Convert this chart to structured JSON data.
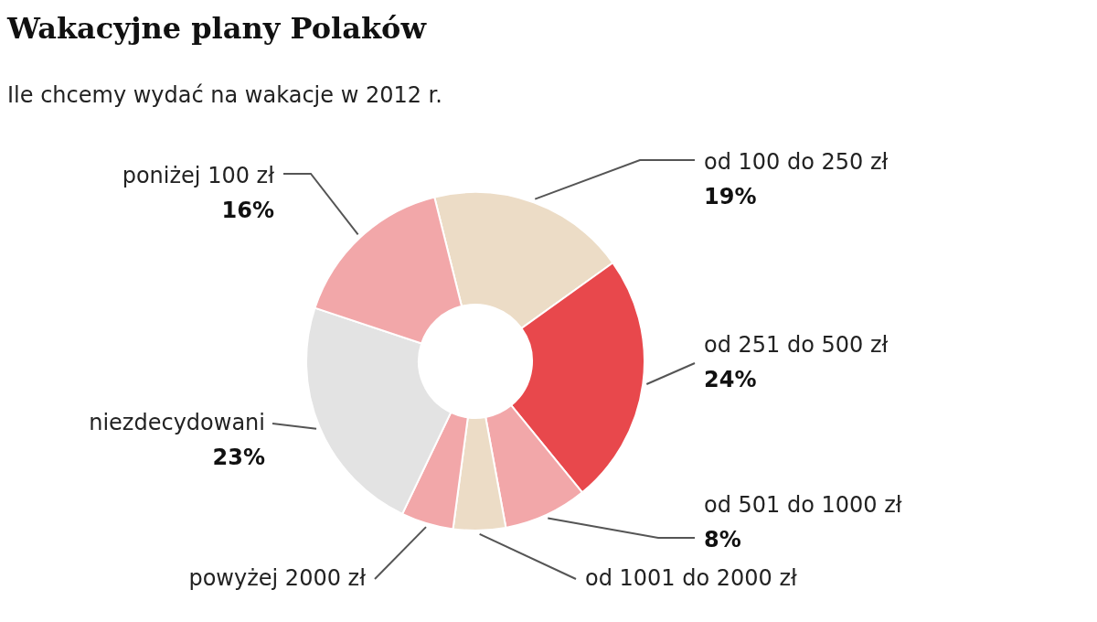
{
  "chart_data": {
    "type": "donut",
    "title": "Wakacyjne plany Polaków",
    "subtitle": "Ile chcemy wydać na wakacje w 2012 r.",
    "categories": [
      "od 100 do 250 zł",
      "od 251 do 500 zł",
      "od 501 do 1000 zł",
      "od 1001 do 2000 zł",
      "powyżej 2000 zł",
      "niezdecydowani",
      "poniżej 100 zł"
    ],
    "values": [
      19,
      24,
      8,
      5,
      5,
      23,
      16
    ],
    "value_labels": [
      "19%",
      "24%",
      "8%",
      null,
      null,
      "23%",
      "16%"
    ],
    "colors": [
      "#ecdcc6",
      "#e8484c",
      "#f2a7a9",
      "#ecdcc6",
      "#f2a7a9",
      "#e3e3e3",
      "#f2a7a9"
    ]
  }
}
